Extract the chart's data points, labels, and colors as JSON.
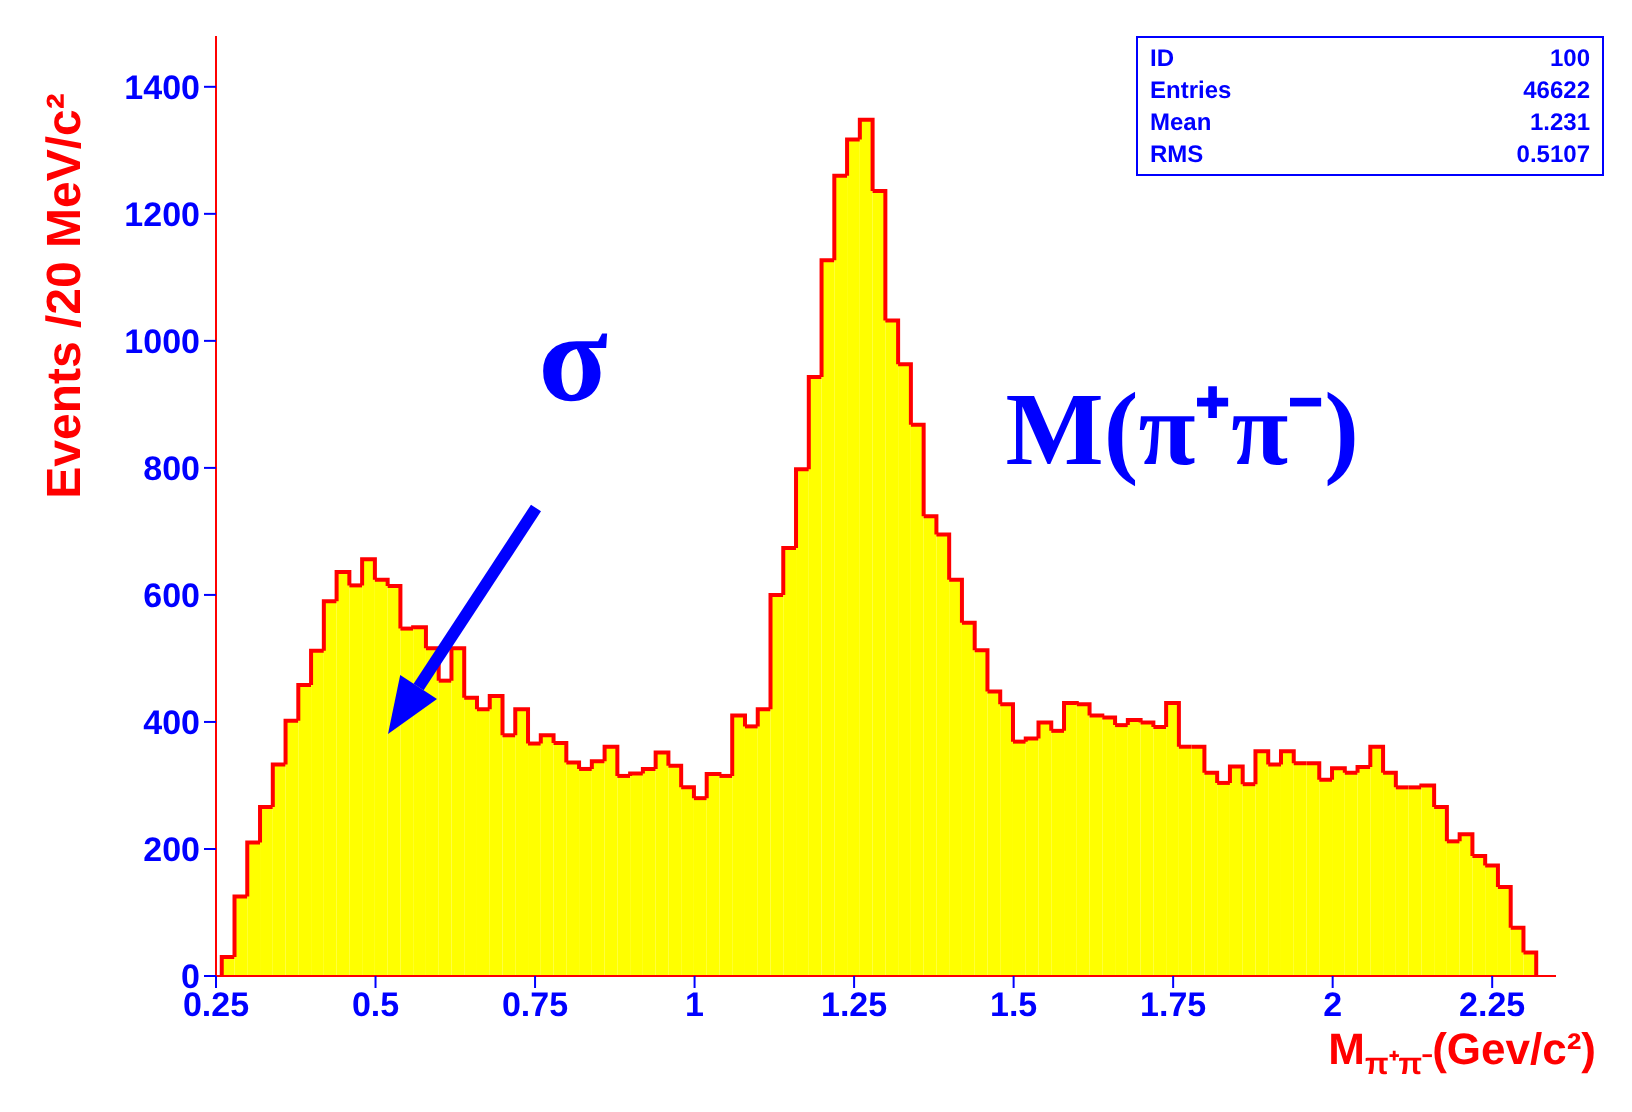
{
  "chart_data": {
    "type": "histogram",
    "xlabel": "M$_{π⁺π⁻}$(Gev/c²)",
    "ylabel": "Events /20 MeV/c²",
    "bins": [
      0.26,
      0.28,
      0.3,
      0.32,
      0.34,
      0.36,
      0.38,
      0.4,
      0.42,
      0.44,
      0.46,
      0.48,
      0.5,
      0.52,
      0.54,
      0.56,
      0.58,
      0.6,
      0.62,
      0.64,
      0.66,
      0.68,
      0.7,
      0.72,
      0.74,
      0.76,
      0.78,
      0.8,
      0.82,
      0.84,
      0.86,
      0.88,
      0.9,
      0.92,
      0.94,
      0.96,
      0.98,
      1.0,
      1.02,
      1.04,
      1.06,
      1.08,
      1.1,
      1.12,
      1.14,
      1.16,
      1.18,
      1.2,
      1.22,
      1.24,
      1.26,
      1.28,
      1.3,
      1.32,
      1.34,
      1.36,
      1.38,
      1.4,
      1.42,
      1.44,
      1.46,
      1.48,
      1.5,
      1.52,
      1.54,
      1.56,
      1.58,
      1.6,
      1.62,
      1.64,
      1.66,
      1.68,
      1.7,
      1.72,
      1.74,
      1.76,
      1.78,
      1.8,
      1.82,
      1.84,
      1.86,
      1.88,
      1.9,
      1.92,
      1.94,
      1.96,
      1.98,
      2.0,
      2.02,
      2.04,
      2.06,
      2.08,
      2.1,
      2.12,
      2.14,
      2.16,
      2.18,
      2.2,
      2.22,
      2.24,
      2.26,
      2.28,
      2.3,
      2.32
    ],
    "values": [
      30,
      125,
      210,
      266,
      333,
      402,
      458,
      512,
      590,
      636,
      615,
      656,
      624,
      614,
      547,
      549,
      516,
      465,
      516,
      438,
      420,
      441,
      379,
      420,
      366,
      379,
      367,
      336,
      326,
      338,
      361,
      315,
      319,
      326,
      352,
      331,
      297,
      280,
      318,
      315,
      410,
      393,
      420,
      600,
      674,
      798,
      943,
      1127,
      1260,
      1317,
      1348,
      1236,
      1032,
      963,
      868,
      724,
      695,
      624,
      556,
      513,
      448,
      428,
      369,
      374,
      399,
      386,
      430,
      428,
      410,
      407,
      395,
      403,
      399,
      392,
      430,
      361,
      361,
      320,
      304,
      330,
      302,
      354,
      333,
      354,
      335,
      335,
      309,
      327,
      320,
      329,
      361,
      320,
      297,
      297,
      300,
      266,
      212,
      223,
      189,
      174,
      140,
      76,
      37
    ],
    "color": "#ffff00",
    "xlim": [
      0.25,
      2.35
    ],
    "xticks": [
      0.25,
      0.5,
      0.75,
      1,
      1.25,
      1.5,
      1.75,
      2,
      2.25
    ],
    "ylim": [
      0,
      1480
    ],
    "yticks": [
      0,
      200,
      400,
      600,
      800,
      1000,
      1200,
      1400
    ],
    "grid": false,
    "legend": false,
    "annotations": [
      {
        "text": "σ",
        "x": 0.52,
        "y": 380
      },
      {
        "text": "M(π⁺π⁻)",
        "x": 1.29,
        "y": 1348
      },
      "ID",
      "100",
      "Entries",
      "46622",
      "Mean",
      "1.231",
      "RMS",
      "0.5107"
    ]
  }
}
